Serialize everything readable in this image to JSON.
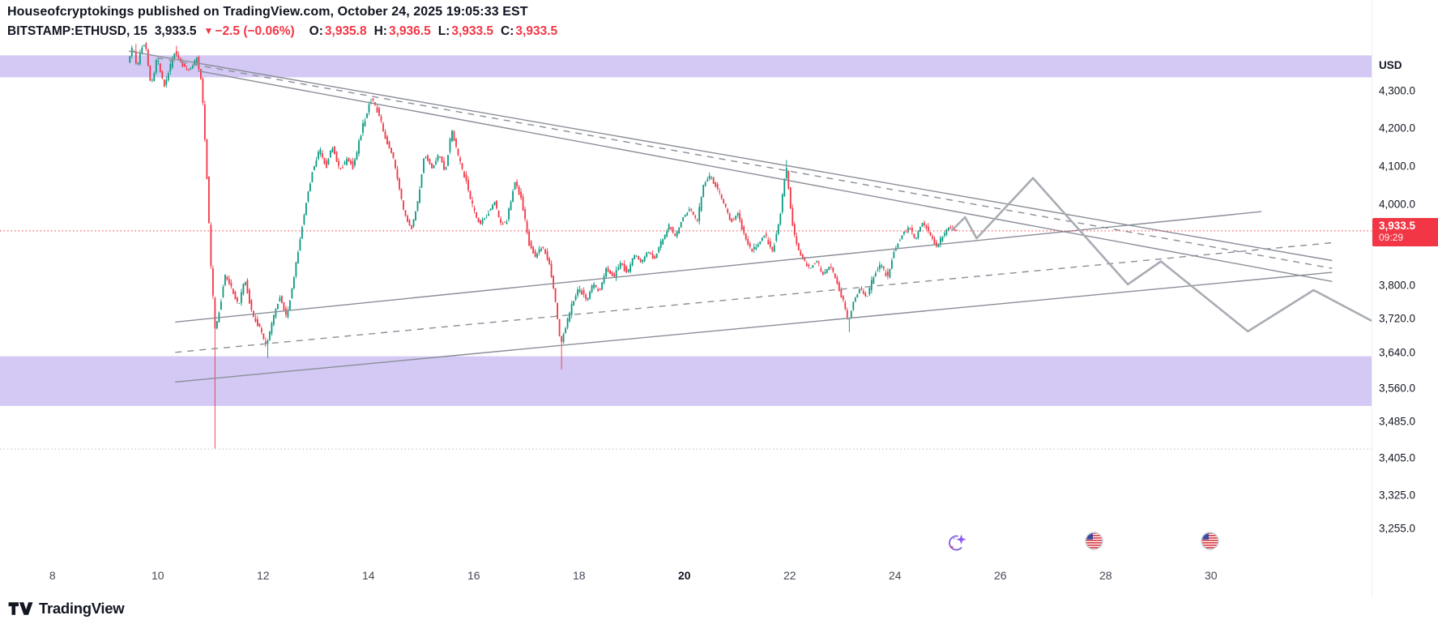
{
  "header": {
    "publisher": "Houseofcryptokings",
    "suffix": " published on TradingView.com, October 24, 2025 19:05:33 EST"
  },
  "symbol_bar": {
    "symbol_interval": "BITSTAMP:ETHUSD, 15",
    "last_price": "3,933.5",
    "direction_icon": "▼",
    "change": "−2.5",
    "change_pct": "(−0.06%)",
    "ohlc": [
      {
        "label": "O:",
        "value": "3,935.8"
      },
      {
        "label": "H:",
        "value": "3,936.5"
      },
      {
        "label": "L:",
        "value": "3,933.5"
      },
      {
        "label": "C:",
        "value": "3,933.5"
      }
    ]
  },
  "price_axis": {
    "currency_label": "USD",
    "ticks": [
      {
        "label": "4,300.0",
        "value": 4300
      },
      {
        "label": "4,200.0",
        "value": 4200
      },
      {
        "label": "4,100.0",
        "value": 4100
      },
      {
        "label": "4,000.0",
        "value": 4000
      },
      {
        "label": "3,800.0",
        "value": 3800
      },
      {
        "label": "3,720.0",
        "value": 3720
      },
      {
        "label": "3,640.0",
        "value": 3640
      },
      {
        "label": "3,560.0",
        "value": 3560
      },
      {
        "label": "3,485.0",
        "value": 3485
      },
      {
        "label": "3,405.0",
        "value": 3405
      },
      {
        "label": "3,325.0",
        "value": 3325
      },
      {
        "label": "3,255.0",
        "value": 3255
      }
    ],
    "last_price_badge": {
      "price": "3,933.5",
      "countdown": "09:29",
      "value": 3933.5
    }
  },
  "time_axis": {
    "ticks": [
      {
        "label": "8",
        "day": 8,
        "bold": false
      },
      {
        "label": "10",
        "day": 10,
        "bold": false
      },
      {
        "label": "12",
        "day": 12,
        "bold": false
      },
      {
        "label": "14",
        "day": 14,
        "bold": false
      },
      {
        "label": "16",
        "day": 16,
        "bold": false
      },
      {
        "label": "18",
        "day": 18,
        "bold": false
      },
      {
        "label": "20",
        "day": 20,
        "bold": true
      },
      {
        "label": "22",
        "day": 22,
        "bold": false
      },
      {
        "label": "24",
        "day": 24,
        "bold": false
      },
      {
        "label": "26",
        "day": 26,
        "bold": false
      },
      {
        "label": "28",
        "day": 28,
        "bold": false
      },
      {
        "label": "30",
        "day": 30,
        "bold": false
      }
    ]
  },
  "footer": {
    "brand": "TradingView"
  },
  "chart_data": {
    "type": "candlestick",
    "symbol": "BITSTAMP:ETHUSD",
    "interval": "15",
    "x_unit": "day-of-October-2025",
    "x_axis_days": [
      8,
      10,
      12,
      14,
      16,
      18,
      20,
      22,
      24,
      26,
      28,
      30
    ],
    "price_scale": "log",
    "visible_price_range": [
      3255,
      4460
    ],
    "last_close": 3933.5,
    "last_candle_ohlc": {
      "o": 3935.8,
      "h": 3936.5,
      "l": 3933.5,
      "c": 3933.5
    },
    "colors": {
      "up": "#089981",
      "down": "#f23645",
      "trendline": "#8a8e98",
      "projection": "#a9acb4",
      "zone": "rgba(120,86,221,0.32)"
    },
    "price_path": [
      [
        9.45,
        4380
      ],
      [
        9.55,
        4425
      ],
      [
        9.62,
        4360
      ],
      [
        9.7,
        4420
      ],
      [
        9.78,
        4430
      ],
      [
        9.89,
        4310
      ],
      [
        10.0,
        4390
      ],
      [
        10.15,
        4310
      ],
      [
        10.33,
        4405
      ],
      [
        10.5,
        4370
      ],
      [
        10.62,
        4355
      ],
      [
        10.76,
        4390
      ],
      [
        10.85,
        4320
      ],
      [
        10.94,
        4100
      ],
      [
        11.03,
        3835
      ],
      [
        11.11,
        3690
      ],
      [
        11.2,
        3750
      ],
      [
        11.29,
        3825
      ],
      [
        11.41,
        3795
      ],
      [
        11.55,
        3750
      ],
      [
        11.67,
        3815
      ],
      [
        11.81,
        3730
      ],
      [
        11.95,
        3700
      ],
      [
        12.07,
        3655
      ],
      [
        12.21,
        3720
      ],
      [
        12.34,
        3775
      ],
      [
        12.46,
        3720
      ],
      [
        12.6,
        3815
      ],
      [
        12.77,
        3955
      ],
      [
        12.95,
        4085
      ],
      [
        13.09,
        4145
      ],
      [
        13.21,
        4095
      ],
      [
        13.33,
        4155
      ],
      [
        13.47,
        4085
      ],
      [
        13.61,
        4120
      ],
      [
        13.73,
        4095
      ],
      [
        13.91,
        4205
      ],
      [
        14.08,
        4280
      ],
      [
        14.21,
        4240
      ],
      [
        14.35,
        4170
      ],
      [
        14.49,
        4120
      ],
      [
        14.61,
        4035
      ],
      [
        14.7,
        3975
      ],
      [
        14.84,
        3940
      ],
      [
        14.96,
        4010
      ],
      [
        15.08,
        4130
      ],
      [
        15.22,
        4095
      ],
      [
        15.36,
        4130
      ],
      [
        15.48,
        4085
      ],
      [
        15.6,
        4195
      ],
      [
        15.75,
        4110
      ],
      [
        15.89,
        4050
      ],
      [
        16.01,
        3985
      ],
      [
        16.13,
        3950
      ],
      [
        16.27,
        3975
      ],
      [
        16.41,
        4010
      ],
      [
        16.53,
        3950
      ],
      [
        16.65,
        3960
      ],
      [
        16.79,
        4060
      ],
      [
        16.93,
        4010
      ],
      [
        17.06,
        3905
      ],
      [
        17.18,
        3870
      ],
      [
        17.32,
        3895
      ],
      [
        17.46,
        3850
      ],
      [
        17.58,
        3750
      ],
      [
        17.67,
        3655
      ],
      [
        17.76,
        3700
      ],
      [
        17.88,
        3750
      ],
      [
        18.02,
        3795
      ],
      [
        18.16,
        3760
      ],
      [
        18.28,
        3805
      ],
      [
        18.4,
        3785
      ],
      [
        18.54,
        3840
      ],
      [
        18.68,
        3820
      ],
      [
        18.8,
        3855
      ],
      [
        18.93,
        3830
      ],
      [
        19.07,
        3875
      ],
      [
        19.21,
        3855
      ],
      [
        19.33,
        3885
      ],
      [
        19.45,
        3865
      ],
      [
        19.59,
        3910
      ],
      [
        19.73,
        3945
      ],
      [
        19.85,
        3920
      ],
      [
        19.98,
        3965
      ],
      [
        20.12,
        3990
      ],
      [
        20.26,
        3955
      ],
      [
        20.38,
        4050
      ],
      [
        20.5,
        4075
      ],
      [
        20.64,
        4040
      ],
      [
        20.78,
        4000
      ],
      [
        20.9,
        3955
      ],
      [
        21.03,
        3975
      ],
      [
        21.17,
        3915
      ],
      [
        21.31,
        3880
      ],
      [
        21.43,
        3905
      ],
      [
        21.55,
        3925
      ],
      [
        21.69,
        3880
      ],
      [
        21.83,
        3965
      ],
      [
        21.95,
        4100
      ],
      [
        22.05,
        3970
      ],
      [
        22.13,
        3905
      ],
      [
        22.25,
        3870
      ],
      [
        22.39,
        3840
      ],
      [
        22.53,
        3860
      ],
      [
        22.65,
        3825
      ],
      [
        22.78,
        3850
      ],
      [
        22.92,
        3805
      ],
      [
        23.06,
        3750
      ],
      [
        23.13,
        3710
      ],
      [
        23.23,
        3760
      ],
      [
        23.35,
        3795
      ],
      [
        23.48,
        3770
      ],
      [
        23.62,
        3825
      ],
      [
        23.76,
        3850
      ],
      [
        23.88,
        3815
      ],
      [
        24.0,
        3885
      ],
      [
        24.14,
        3920
      ],
      [
        24.28,
        3945
      ],
      [
        24.4,
        3910
      ],
      [
        24.52,
        3955
      ],
      [
        24.66,
        3930
      ],
      [
        24.8,
        3895
      ],
      [
        24.93,
        3920
      ],
      [
        25.05,
        3945
      ],
      [
        25.19,
        3933.5
      ]
    ],
    "special_wicks": [
      {
        "t": 9.6,
        "high": 4430
      },
      {
        "t": 10.35,
        "high": 4425
      },
      {
        "t": 11.08,
        "low": 3425
      },
      {
        "t": 12.07,
        "low": 3628
      },
      {
        "t": 17.67,
        "low": 3602
      },
      {
        "t": 21.93,
        "high": 4115
      },
      {
        "t": 23.12,
        "low": 3688
      }
    ],
    "zones": [
      {
        "from": 4337,
        "to": 4398
      },
      {
        "from": 3519,
        "to": 3632
      }
    ],
    "trendlines": [
      {
        "p1": [
          9.45,
          4410
        ],
        "p2": [
          32.3,
          3860
        ],
        "style": "solid"
      },
      {
        "p1": [
          9.98,
          4391
        ],
        "p2": [
          32.3,
          3841
        ],
        "style": "dashed"
      },
      {
        "p1": [
          10.76,
          4355
        ],
        "p2": [
          32.3,
          3809
        ],
        "style": "solid"
      },
      {
        "p1": [
          10.33,
          3712
        ],
        "p2": [
          30.96,
          3982
        ],
        "style": "solid"
      },
      {
        "p1": [
          10.33,
          3641
        ],
        "p2": [
          32.3,
          3904
        ],
        "style": "dashed"
      },
      {
        "p1": [
          10.33,
          3573
        ],
        "p2": [
          32.3,
          3831
        ],
        "style": "solid"
      }
    ],
    "projection": [
      [
        25.08,
        3935
      ],
      [
        25.33,
        3968
      ],
      [
        25.55,
        3915
      ],
      [
        26.62,
        4068
      ],
      [
        28.42,
        3802
      ],
      [
        29.05,
        3858
      ],
      [
        30.7,
        3690
      ],
      [
        31.95,
        3788
      ],
      [
        33.2,
        3705
      ]
    ],
    "price_lines": [
      {
        "value": 3933.5,
        "color": "#f23645",
        "style": "dotted",
        "role": "last-price"
      },
      {
        "value": 3424,
        "color": "#b8bbc2",
        "style": "dotted",
        "role": "reference-low"
      }
    ],
    "events": [
      {
        "day": 25.19,
        "type": "sparkle",
        "name": "idea-sparkle-event-icon"
      },
      {
        "day": 27.8,
        "type": "us-flag",
        "name": "us-economic-event-icon"
      },
      {
        "day": 30.0,
        "type": "us-flag",
        "name": "us-economic-event-icon"
      }
    ]
  }
}
